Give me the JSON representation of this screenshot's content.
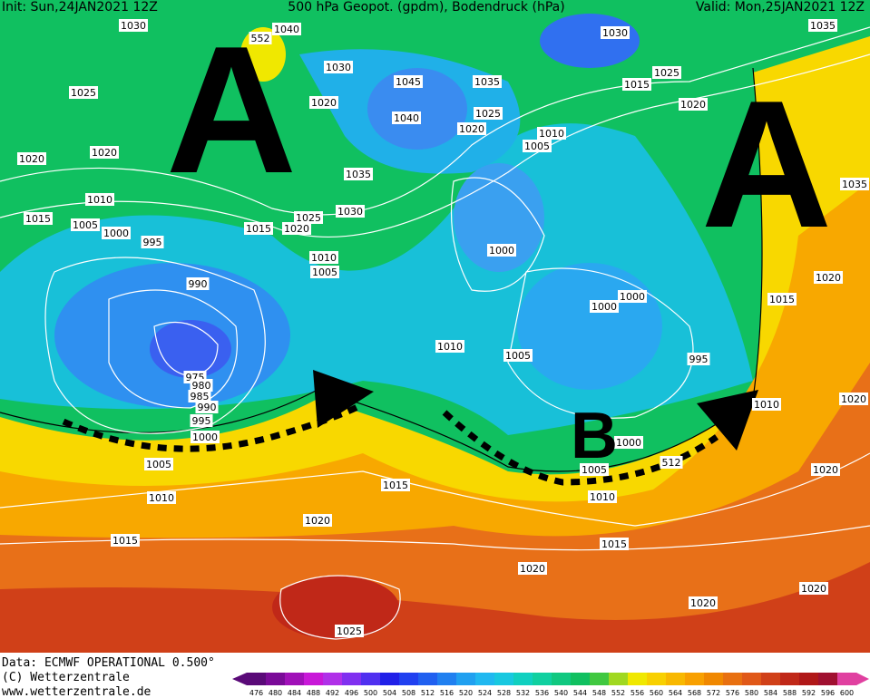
{
  "header": {
    "init": "Init: Sun,24JAN2021 12Z",
    "title": "500 hPa Geopot. (gpdm), Bodendruck (hPa)",
    "valid": "Valid: Mon,25JAN2021 12Z"
  },
  "annotations": [
    "A",
    "A",
    "B"
  ],
  "isobar_labels": [
    "1030",
    "1040",
    "1030",
    "1020",
    "1025",
    "1020",
    "1020",
    "1010",
    "1015",
    "1005",
    "1000",
    "995",
    "1045",
    "1040",
    "1035",
    "1025",
    "1020",
    "1010",
    "1005",
    "1035",
    "1025",
    "1030",
    "1015",
    "1020",
    "1010",
    "1005",
    "1000",
    "990",
    "975",
    "980",
    "985",
    "990",
    "995",
    "1000",
    "1005",
    "1010",
    "1015",
    "1020",
    "1015",
    "1010",
    "1005",
    "1000",
    "1000",
    "995",
    "1000",
    "1005",
    "1010",
    "1015",
    "1020",
    "1020",
    "1025",
    "1030",
    "1035",
    "1025",
    "1015",
    "1020",
    "1035",
    "1020",
    "1015",
    "1010",
    "1020",
    "1020",
    "1020",
    "512",
    "552"
  ],
  "footer": {
    "data": "Data: ECMWF OPERATIONAL 0.500°",
    "copyright": "(C) Wetterzentrale",
    "url": "www.wetterzentrale.de"
  },
  "legend": {
    "values": [
      476,
      480,
      484,
      488,
      492,
      496,
      500,
      504,
      508,
      512,
      516,
      520,
      524,
      528,
      532,
      536,
      540,
      544,
      548,
      552,
      556,
      560,
      564,
      568,
      572,
      576,
      580,
      584,
      588,
      592,
      596,
      600
    ],
    "colors": [
      "#5a0a78",
      "#7a0a98",
      "#a010b8",
      "#c818d8",
      "#b030e8",
      "#8030f0",
      "#5030f0",
      "#2020e8",
      "#2040f0",
      "#2060f0",
      "#2080f0",
      "#20a0f0",
      "#20b8f0",
      "#18c8e0",
      "#10d0c0",
      "#10d0a0",
      "#10c880",
      "#10c060",
      "#40c840",
      "#a0d820",
      "#f0e800",
      "#f8d000",
      "#f8b800",
      "#f8a000",
      "#f08800",
      "#e87010",
      "#e05818",
      "#d04018",
      "#c02818",
      "#b01818",
      "#a01030",
      "#e040a0"
    ]
  }
}
